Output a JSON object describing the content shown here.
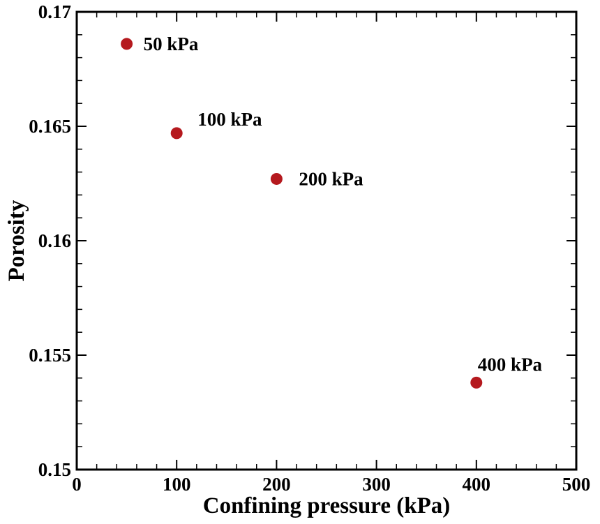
{
  "chart_data": {
    "type": "scatter",
    "title": "",
    "xlabel": "Confining pressure (kPa)",
    "ylabel": "Porosity",
    "xlim": [
      0,
      500
    ],
    "ylim": [
      0.15,
      0.17
    ],
    "x_ticks": [
      0,
      100,
      200,
      300,
      400,
      500
    ],
    "x_tick_labels": [
      "0",
      "100",
      "200",
      "300",
      "400",
      "500"
    ],
    "y_ticks": [
      0.15,
      0.155,
      0.16,
      0.165,
      0.17
    ],
    "y_tick_labels": [
      "0.15",
      "0.155",
      "0.16",
      "0.165",
      "0.17"
    ],
    "grid": false,
    "marker_color": "#b5191e",
    "series": [
      {
        "name": "Porosity",
        "points": [
          {
            "x": 50,
            "y": 0.1686,
            "label": "50 kPa"
          },
          {
            "x": 100,
            "y": 0.1647,
            "label": "100 kPa"
          },
          {
            "x": 200,
            "y": 0.1627,
            "label": "200 kPa"
          },
          {
            "x": 400,
            "y": 0.1538,
            "label": "400 kPa"
          }
        ]
      }
    ]
  }
}
